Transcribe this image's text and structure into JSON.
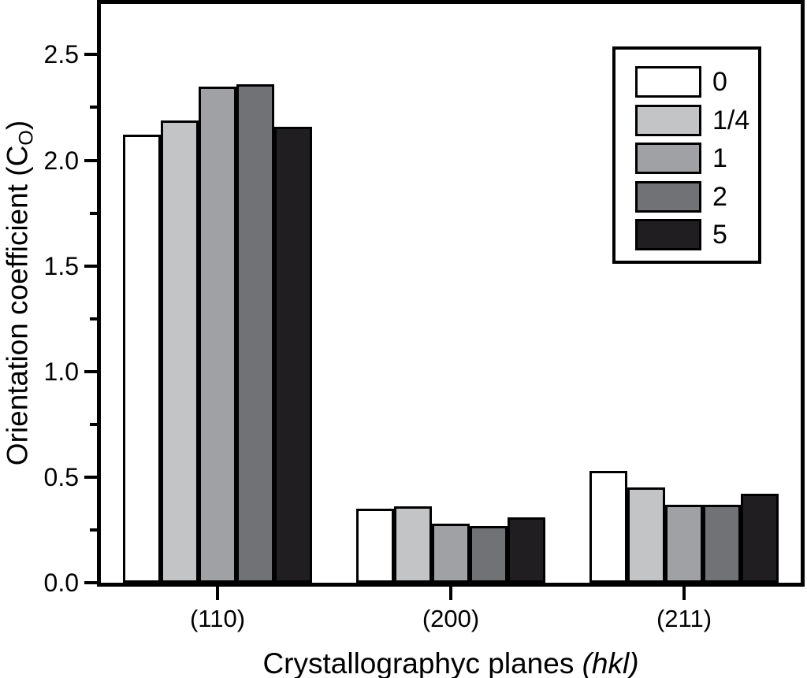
{
  "chart": {
    "y_label": {
      "pre": "Orientation coefficient (C",
      "sub": "O",
      "post": ")"
    },
    "x_label": {
      "main": "Crystallographyc planes",
      "italic": "(hkl)"
    }
  },
  "chart_data": {
    "type": "bar",
    "title": "",
    "xlabel": "Crystallographyc planes (hkl)",
    "ylabel": "Orientation coefficient (C_O)",
    "categories": [
      "(110)",
      "(200)",
      "(211)"
    ],
    "series": [
      {
        "name": "0",
        "color": "#ffffff",
        "values": [
          2.12,
          0.35,
          0.53
        ]
      },
      {
        "name": "1/4",
        "color": "#c3c4c6",
        "values": [
          2.19,
          0.36,
          0.45
        ]
      },
      {
        "name": "1",
        "color": "#a0a1a4",
        "values": [
          2.35,
          0.28,
          0.37
        ]
      },
      {
        "name": "2",
        "color": "#717275",
        "values": [
          2.36,
          0.27,
          0.37
        ]
      },
      {
        "name": "5",
        "color": "#211e22",
        "values": [
          2.16,
          0.31,
          0.42
        ]
      }
    ],
    "ylim": [
      0,
      2.74
    ],
    "y_major_ticks": [
      0.0,
      0.5,
      1.0,
      1.5,
      2.0,
      2.5
    ],
    "y_tick_labels": [
      "0.0",
      "0.5",
      "1.0",
      "1.5",
      "2.0",
      "2.5"
    ],
    "y_minor_step": 0.25,
    "grid": false,
    "legend_position": "top-right",
    "bar_outline": "#000000",
    "background": "#ffffff"
  }
}
